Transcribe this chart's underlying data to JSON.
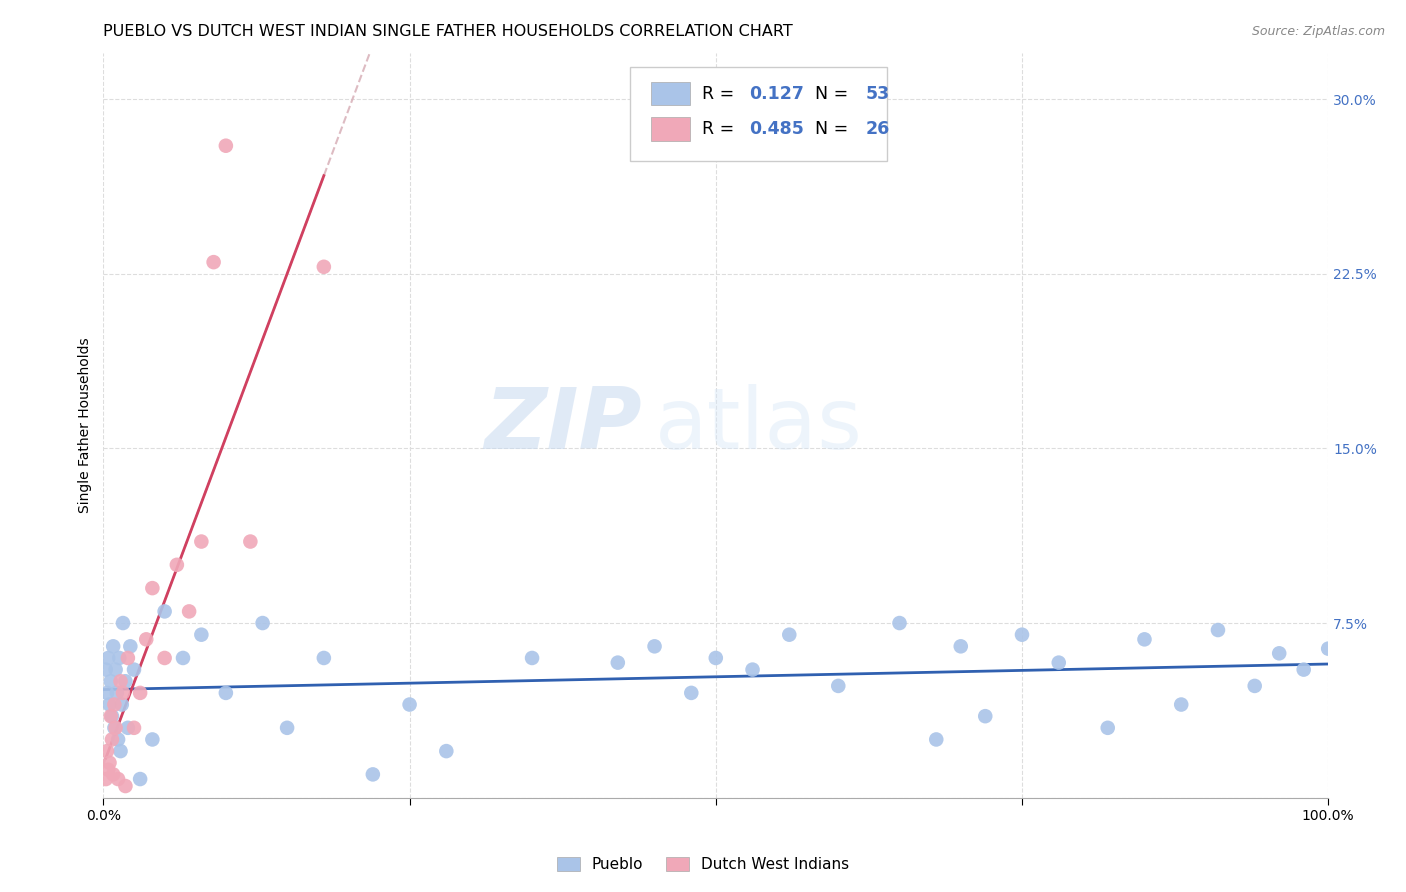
{
  "title": "PUEBLO VS DUTCH WEST INDIAN SINGLE FATHER HOUSEHOLDS CORRELATION CHART",
  "source": "Source: ZipAtlas.com",
  "ylabel": "Single Father Households",
  "xlim": [
    0.0,
    1.0
  ],
  "ylim": [
    0.0,
    0.32
  ],
  "yticks": [
    0.0,
    0.075,
    0.15,
    0.225,
    0.3
  ],
  "yticklabels": [
    "",
    "7.5%",
    "15.0%",
    "22.5%",
    "30.0%"
  ],
  "xticks": [
    0.0,
    0.25,
    0.5,
    0.75,
    1.0
  ],
  "xticklabels": [
    "0.0%",
    "",
    "",
    "",
    "100.0%"
  ],
  "pueblo_color": "#aac4e8",
  "dutch_color": "#f0a8b8",
  "pueblo_line_color": "#3060b0",
  "dutch_line_color": "#d04060",
  "dutch_dashed_color": "#d8b0b8",
  "R_pueblo": "0.127",
  "N_pueblo": "53",
  "R_dutch": "0.485",
  "N_dutch": "26",
  "legend_label_pueblo": "Pueblo",
  "legend_label_dutch": "Dutch West Indians",
  "watermark_zip": "ZIP",
  "watermark_atlas": "atlas",
  "title_fontsize": 11.5,
  "axis_label_fontsize": 10,
  "tick_fontsize": 10,
  "background_color": "#ffffff",
  "grid_color": "#dddddd",
  "pueblo_x": [
    0.002,
    0.003,
    0.004,
    0.005,
    0.006,
    0.007,
    0.008,
    0.009,
    0.01,
    0.011,
    0.012,
    0.013,
    0.014,
    0.015,
    0.016,
    0.018,
    0.02,
    0.022,
    0.025,
    0.03,
    0.04,
    0.05,
    0.065,
    0.08,
    0.1,
    0.13,
    0.15,
    0.18,
    0.22,
    0.25,
    0.28,
    0.35,
    0.42,
    0.45,
    0.48,
    0.5,
    0.53,
    0.56,
    0.6,
    0.65,
    0.68,
    0.7,
    0.72,
    0.75,
    0.78,
    0.82,
    0.85,
    0.88,
    0.91,
    0.94,
    0.96,
    0.98,
    1.0
  ],
  "pueblo_y": [
    0.055,
    0.045,
    0.06,
    0.04,
    0.05,
    0.035,
    0.065,
    0.03,
    0.055,
    0.045,
    0.025,
    0.06,
    0.02,
    0.04,
    0.075,
    0.05,
    0.03,
    0.065,
    0.055,
    0.008,
    0.025,
    0.08,
    0.06,
    0.07,
    0.045,
    0.075,
    0.03,
    0.06,
    0.01,
    0.04,
    0.02,
    0.06,
    0.058,
    0.065,
    0.045,
    0.06,
    0.055,
    0.07,
    0.048,
    0.075,
    0.025,
    0.065,
    0.035,
    0.07,
    0.058,
    0.03,
    0.068,
    0.04,
    0.072,
    0.048,
    0.062,
    0.055,
    0.064
  ],
  "dutch_x": [
    0.002,
    0.003,
    0.004,
    0.005,
    0.006,
    0.007,
    0.008,
    0.009,
    0.01,
    0.012,
    0.014,
    0.016,
    0.018,
    0.02,
    0.025,
    0.03,
    0.035,
    0.04,
    0.05,
    0.06,
    0.07,
    0.08,
    0.09,
    0.1,
    0.12,
    0.18
  ],
  "dutch_y": [
    0.008,
    0.02,
    0.012,
    0.015,
    0.035,
    0.025,
    0.01,
    0.04,
    0.03,
    0.008,
    0.05,
    0.045,
    0.005,
    0.06,
    0.03,
    0.045,
    0.068,
    0.09,
    0.06,
    0.1,
    0.08,
    0.11,
    0.23,
    0.28,
    0.11,
    0.228
  ]
}
